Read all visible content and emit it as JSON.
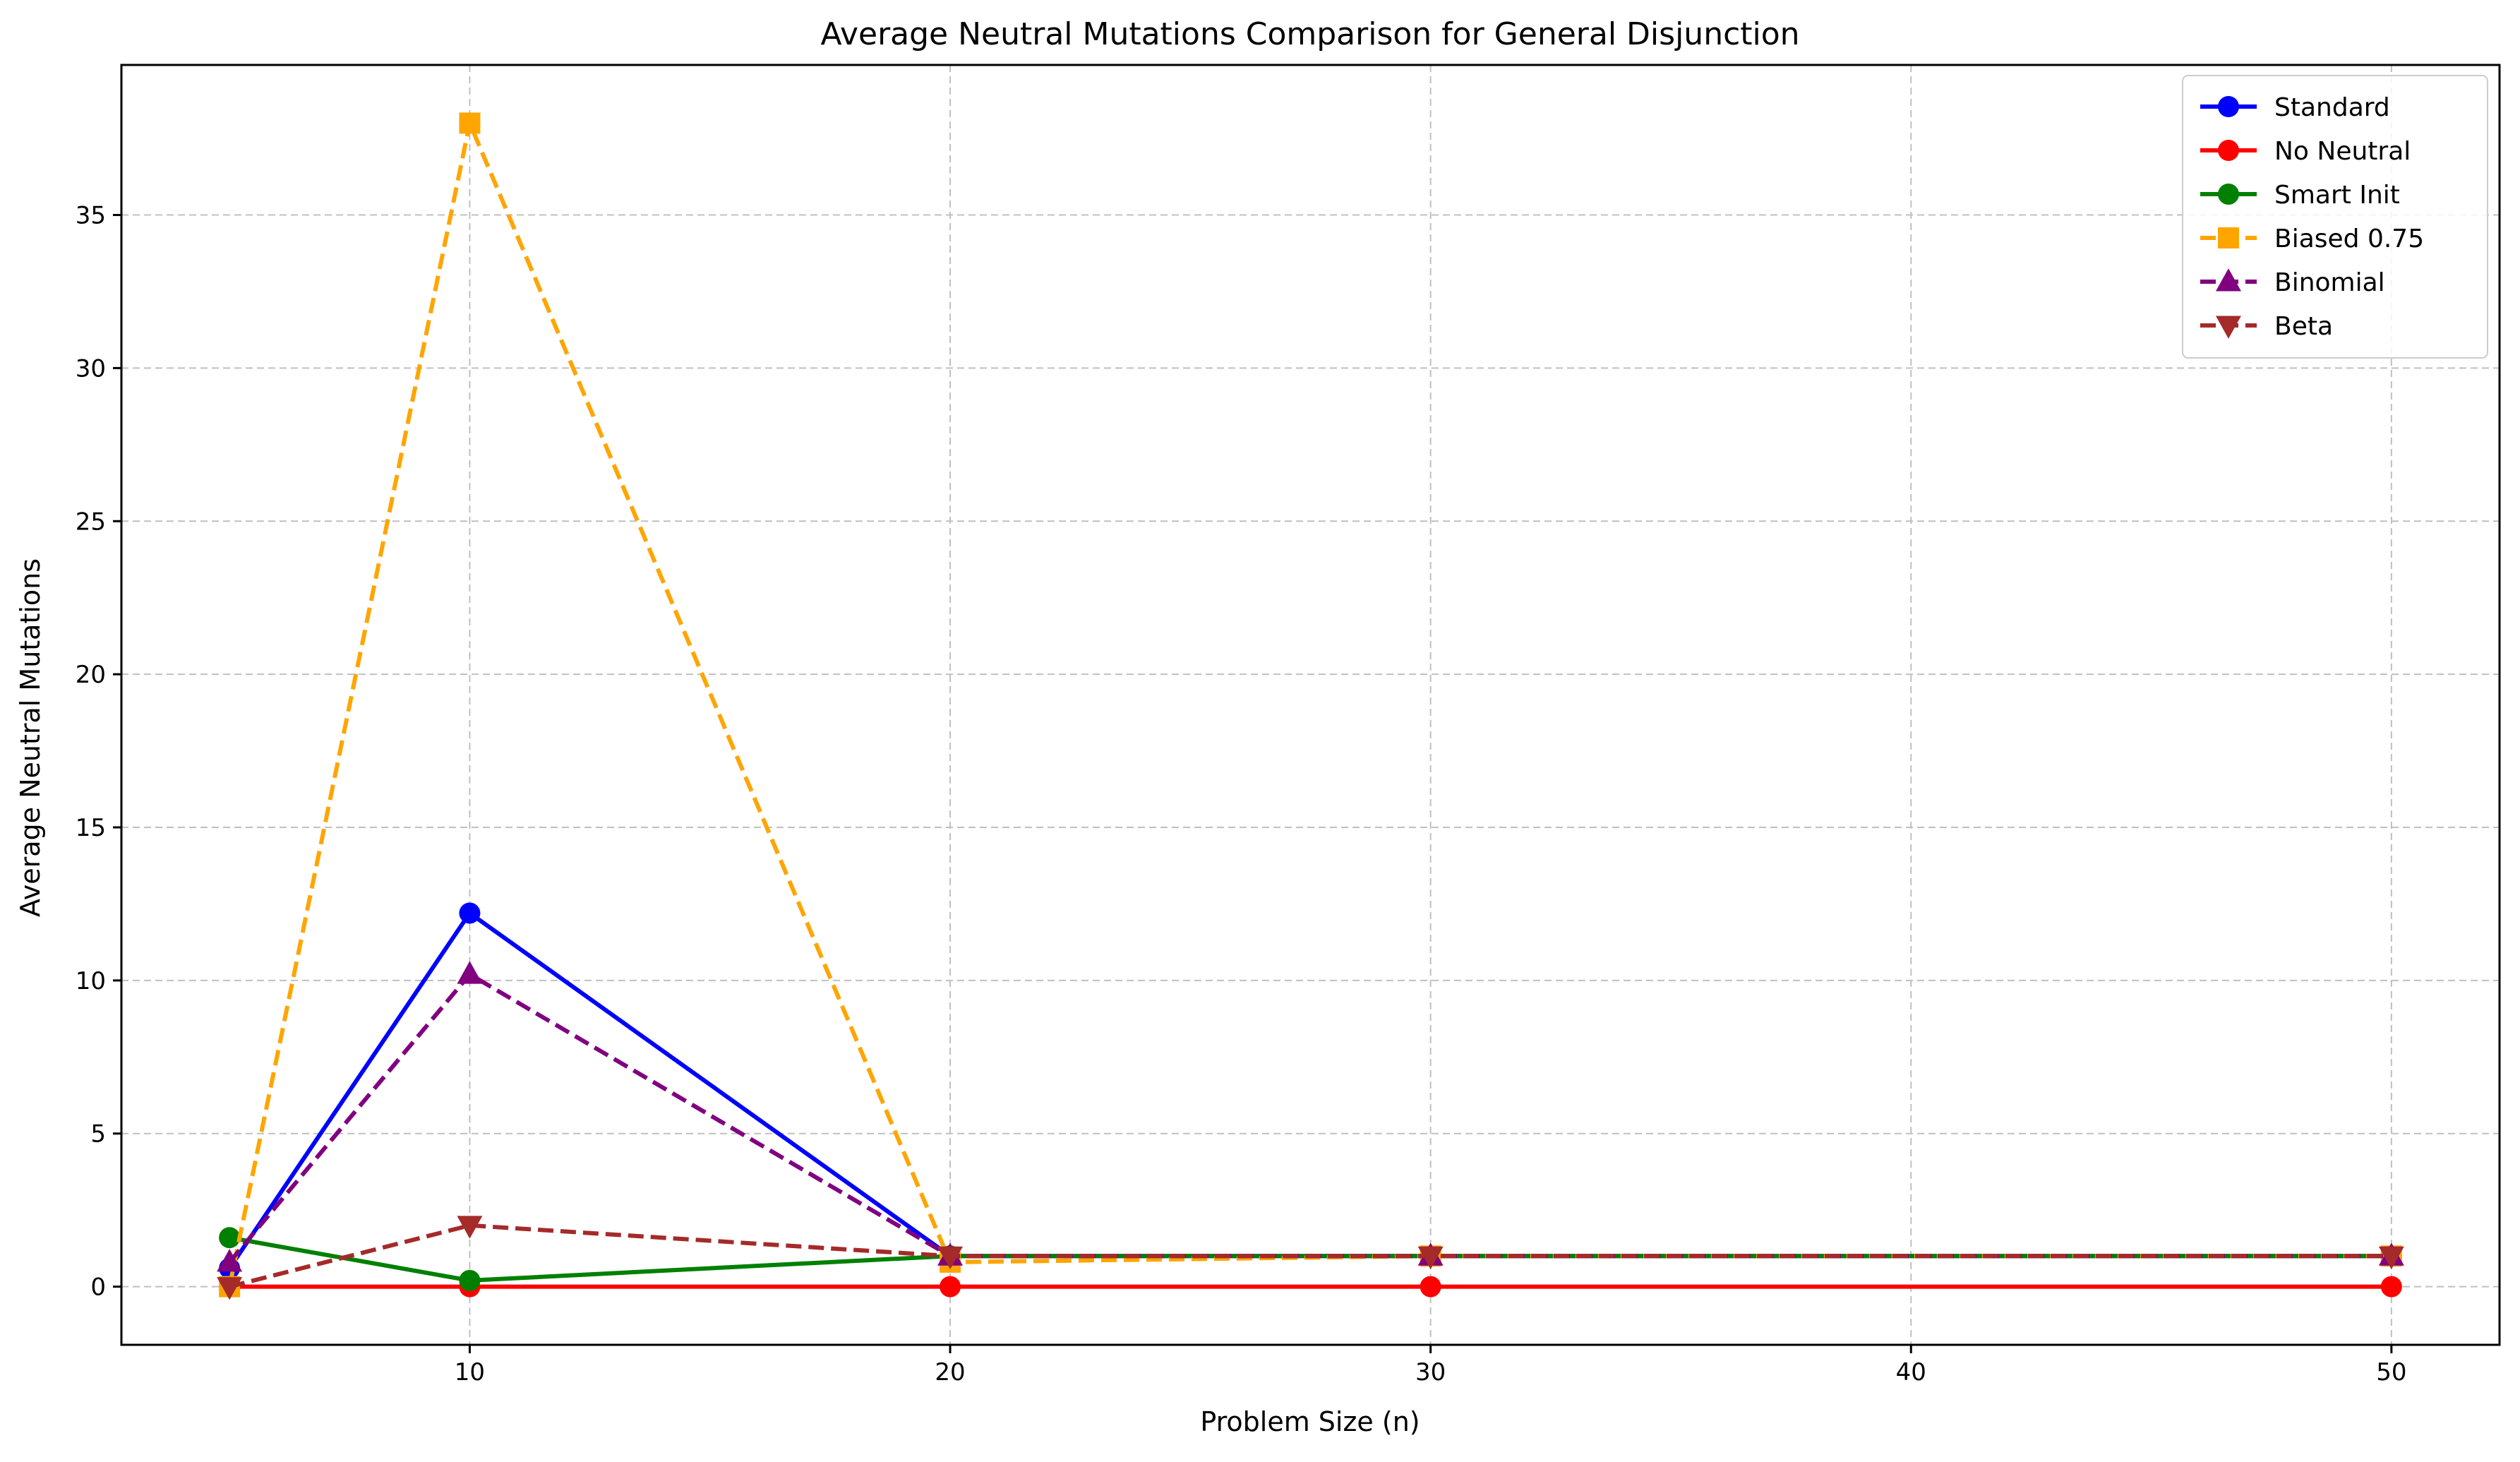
{
  "chart_data": {
    "type": "line",
    "title": "Average Neutral Mutations Comparison for General Disjunction",
    "xlabel": "Problem Size (n)",
    "ylabel": "Average Neutral Mutations",
    "x": [
      5,
      10,
      20,
      30,
      50
    ],
    "xlim": [
      2.75,
      52.25
    ],
    "ylim": [
      -1.9,
      39.9
    ],
    "xticks": [
      10,
      20,
      30,
      40,
      50
    ],
    "yticks": [
      0,
      5,
      10,
      15,
      20,
      25,
      30,
      35
    ],
    "grid": true,
    "legend_position": "top-right",
    "series": [
      {
        "name": "Standard",
        "values": [
          0.6,
          12.2,
          1.0,
          1.0,
          1.0
        ],
        "color": "#0000ff",
        "line_style": "solid",
        "marker": "circle"
      },
      {
        "name": "No Neutral",
        "values": [
          0.0,
          0.0,
          0.0,
          0.0,
          0.0
        ],
        "color": "#ff0000",
        "line_style": "solid",
        "marker": "circle"
      },
      {
        "name": "Smart Init",
        "values": [
          1.6,
          0.2,
          1.0,
          1.0,
          1.0
        ],
        "color": "#008000",
        "line_style": "solid",
        "marker": "circle"
      },
      {
        "name": "Biased 0.75",
        "values": [
          0.0,
          38.0,
          0.8,
          1.0,
          1.0
        ],
        "color": "#ffa500",
        "line_style": "dashed",
        "marker": "square"
      },
      {
        "name": "Binomial",
        "values": [
          0.8,
          10.2,
          1.0,
          1.0,
          1.0
        ],
        "color": "#800080",
        "line_style": "dashed",
        "marker": "triangle-up"
      },
      {
        "name": "Beta",
        "values": [
          0.0,
          2.0,
          1.0,
          1.0,
          1.0
        ],
        "color": "#a52a2a",
        "line_style": "dashed",
        "marker": "triangle-down"
      }
    ]
  }
}
